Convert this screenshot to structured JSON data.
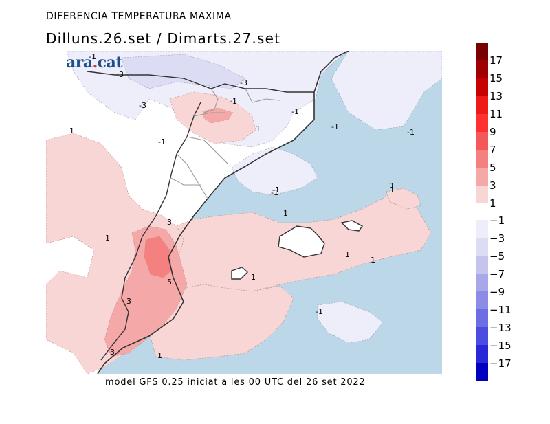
{
  "header": {
    "title": "DIFERENCIA TEMPERATURA MAXIMA",
    "subtitle": "Dilluns.26.set / Dimarts.27.set"
  },
  "footer": "model GFS 0.25 iniciat a les 00 UTC del 26 set 2022",
  "logo": {
    "text": "ara",
    "dot": ".",
    "tld": "cat"
  },
  "legend": {
    "warm": [
      {
        "label": "17",
        "color": "#7a0000"
      },
      {
        "label": "15",
        "color": "#a00000"
      },
      {
        "label": "13",
        "color": "#c80000"
      },
      {
        "label": "11",
        "color": "#ee1a1a"
      },
      {
        "label": "9",
        "color": "#ff3030"
      },
      {
        "label": "7",
        "color": "#f55858"
      },
      {
        "label": "5",
        "color": "#f58080"
      },
      {
        "label": "3",
        "color": "#f5a8a8"
      },
      {
        "label": "1",
        "color": "#f8d6d6"
      }
    ],
    "cold": [
      {
        "label": "−1",
        "color": "#eeeefa"
      },
      {
        "label": "−3",
        "color": "#dcdcf5"
      },
      {
        "label": "−5",
        "color": "#c4c4ee"
      },
      {
        "label": "−7",
        "color": "#a8a8e8"
      },
      {
        "label": "−9",
        "color": "#8c8ce6"
      },
      {
        "label": "−11",
        "color": "#6e6ee4"
      },
      {
        "label": "−13",
        "color": "#4c4ce0"
      },
      {
        "label": "−15",
        "color": "#2828d8"
      },
      {
        "label": "−17",
        "color": "#0000c0"
      }
    ]
  },
  "map": {
    "sea_color": "#bcd8e8",
    "contour_labels": [
      "-1",
      "-3",
      "-3",
      "-1",
      "-3",
      "-1",
      "-1",
      "-1",
      "-1",
      "1",
      "1",
      "-1",
      "-1",
      "1",
      "1",
      "3",
      "5",
      "1",
      "1",
      "1",
      "1",
      "1",
      "-1",
      "3",
      "3",
      "1"
    ]
  }
}
